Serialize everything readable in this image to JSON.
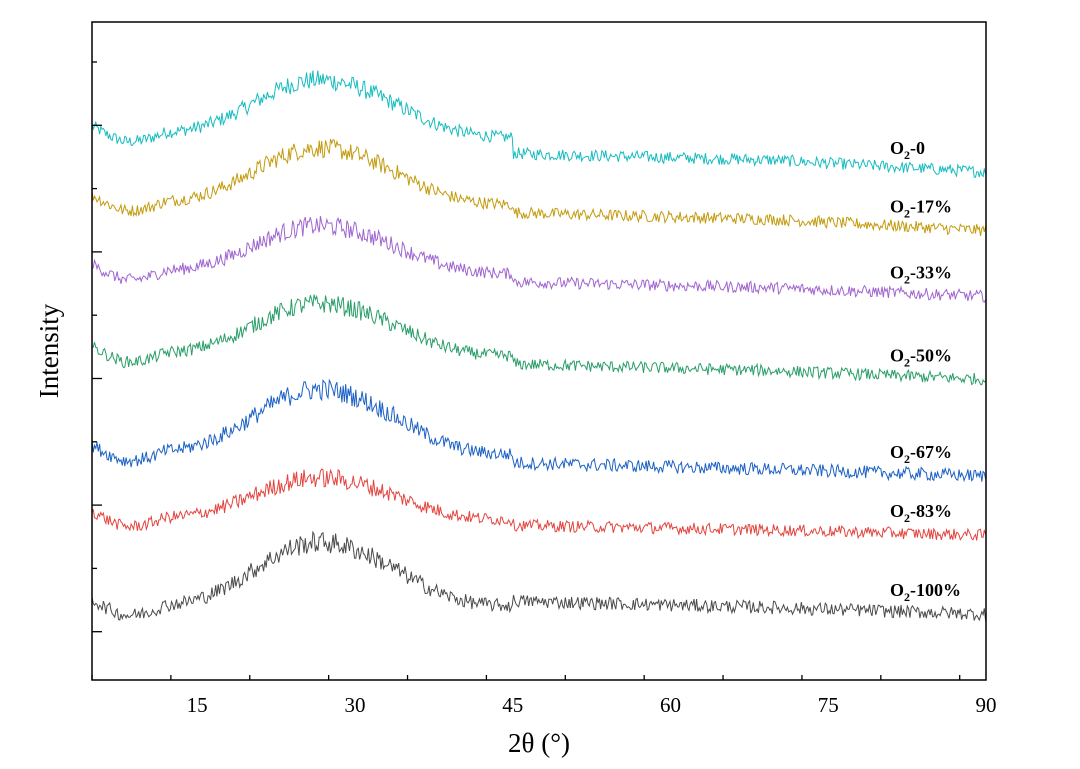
{
  "chart_data": {
    "type": "line",
    "title": "",
    "xlabel": "2θ (°)",
    "ylabel": "Intensity",
    "xlim": [
      5,
      90
    ],
    "ylim": [
      0,
      1
    ],
    "x_ticks": [
      15,
      30,
      45,
      60,
      75,
      90
    ],
    "x_tick_labels": [
      "15",
      "30",
      "45",
      "60",
      "75",
      "90"
    ],
    "y_tick_labels_shown": false,
    "grid": false,
    "description_note": "Stacked (vertically offset) amorphous XRD patterns; y values are offset intensity in arbitrary units (0 = bottom of axis, 1 = top).",
    "series": [
      {
        "name": "O2-0",
        "label_main": "O",
        "label_sub": "2",
        "label_rest": "-0",
        "color": "#17bcc0",
        "baseline": 0.83,
        "peak_height": 0.078,
        "noise": 0.009,
        "tail": [
          0.8,
          0.79,
          0.772
        ]
      },
      {
        "name": "O2-17%",
        "label_main": "O",
        "label_sub": "2",
        "label_rest": "-17%",
        "color": "#c39b0f",
        "baseline": 0.725,
        "peak_height": 0.078,
        "noise": 0.009,
        "tail": [
          0.71,
          0.7,
          0.683
        ]
      },
      {
        "name": "O2-33%",
        "label_main": "O",
        "label_sub": "2",
        "label_rest": "-33%",
        "color": "#a065d0",
        "baseline": 0.62,
        "peak_height": 0.066,
        "noise": 0.009,
        "tail": [
          0.605,
          0.596,
          0.583
        ]
      },
      {
        "name": "O2-50%",
        "label_main": "O",
        "label_sub": "2",
        "label_rest": "-50%",
        "color": "#2a9e68",
        "baseline": 0.495,
        "peak_height": 0.072,
        "noise": 0.009,
        "tail": [
          0.48,
          0.47,
          0.457
        ]
      },
      {
        "name": "O2-67%",
        "label_main": "O",
        "label_sub": "2",
        "label_rest": "-67%",
        "color": "#1d62c4",
        "baseline": 0.345,
        "peak_height": 0.09,
        "noise": 0.01,
        "tail": [
          0.33,
          0.32,
          0.31
        ]
      },
      {
        "name": "O2-83%",
        "label_main": "O",
        "label_sub": "2",
        "label_rest": "-83%",
        "color": "#e3453f",
        "baseline": 0.245,
        "peak_height": 0.058,
        "noise": 0.009,
        "tail": [
          0.235,
          0.228,
          0.22
        ]
      },
      {
        "name": "O2-100%",
        "label_main": "O",
        "label_sub": "2",
        "label_rest": "-100%",
        "color": "#4b4b4b",
        "baseline": 0.11,
        "peak_height": 0.09,
        "noise": 0.01,
        "tail": [
          0.12,
          0.11,
          0.1
        ]
      }
    ]
  }
}
